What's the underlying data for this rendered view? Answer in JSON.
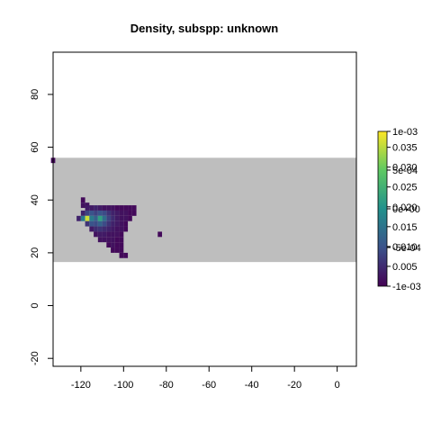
{
  "chart_data": {
    "type": "heatmap",
    "title": "Density, subspp: unknown",
    "xlabel": "",
    "ylabel": "",
    "xlim": [
      -133,
      9
    ],
    "ylim": [
      -23,
      96
    ],
    "x_ticks": [
      -120,
      -100,
      -80,
      -60,
      -40,
      -20,
      0
    ],
    "y_ticks": [
      -20,
      0,
      20,
      40,
      60,
      80
    ],
    "grid": false,
    "background_band": {
      "y_from": 16.5,
      "y_to": 56,
      "color": "#bebebe"
    },
    "colormap": [
      "#440154",
      "#3b528b",
      "#21918c",
      "#5ec962",
      "#fde725"
    ],
    "density_range": [
      0,
      0.039
    ],
    "cells": [
      {
        "x": -119,
        "y": 40,
        "v": 0.001
      },
      {
        "x": -117,
        "y": 38,
        "v": 0.002
      },
      {
        "x": -119,
        "y": 38,
        "v": 0.002
      },
      {
        "x": -117,
        "y": 37,
        "v": 0.003
      },
      {
        "x": -115,
        "y": 37,
        "v": 0.003
      },
      {
        "x": -113,
        "y": 37,
        "v": 0.004
      },
      {
        "x": -111,
        "y": 37,
        "v": 0.003
      },
      {
        "x": -109,
        "y": 37,
        "v": 0.002
      },
      {
        "x": -107,
        "y": 37,
        "v": 0.002
      },
      {
        "x": -105,
        "y": 37,
        "v": 0.002
      },
      {
        "x": -103,
        "y": 37,
        "v": 0.001
      },
      {
        "x": -101,
        "y": 37,
        "v": 0.001
      },
      {
        "x": -99,
        "y": 37,
        "v": 0.001
      },
      {
        "x": -97,
        "y": 37,
        "v": 0.001
      },
      {
        "x": -95,
        "y": 37,
        "v": 0.001
      },
      {
        "x": -119,
        "y": 35,
        "v": 0.004
      },
      {
        "x": -117,
        "y": 35,
        "v": 0.008
      },
      {
        "x": -115,
        "y": 35,
        "v": 0.01
      },
      {
        "x": -113,
        "y": 35,
        "v": 0.008
      },
      {
        "x": -111,
        "y": 35,
        "v": 0.01
      },
      {
        "x": -109,
        "y": 35,
        "v": 0.009
      },
      {
        "x": -107,
        "y": 35,
        "v": 0.006
      },
      {
        "x": -105,
        "y": 35,
        "v": 0.004
      },
      {
        "x": -103,
        "y": 35,
        "v": 0.003
      },
      {
        "x": -101,
        "y": 35,
        "v": 0.002
      },
      {
        "x": -99,
        "y": 35,
        "v": 0.002
      },
      {
        "x": -97,
        "y": 35,
        "v": 0.001
      },
      {
        "x": -95,
        "y": 35,
        "v": 0.001
      },
      {
        "x": -121,
        "y": 33,
        "v": 0.004
      },
      {
        "x": -119,
        "y": 33,
        "v": 0.016
      },
      {
        "x": -117,
        "y": 33,
        "v": 0.036
      },
      {
        "x": -115,
        "y": 33,
        "v": 0.016
      },
      {
        "x": -113,
        "y": 33,
        "v": 0.012
      },
      {
        "x": -111,
        "y": 33,
        "v": 0.022
      },
      {
        "x": -109,
        "y": 33,
        "v": 0.014
      },
      {
        "x": -107,
        "y": 33,
        "v": 0.008
      },
      {
        "x": -105,
        "y": 33,
        "v": 0.005
      },
      {
        "x": -103,
        "y": 33,
        "v": 0.003
      },
      {
        "x": -101,
        "y": 33,
        "v": 0.002
      },
      {
        "x": -99,
        "y": 33,
        "v": 0.002
      },
      {
        "x": -97,
        "y": 33,
        "v": 0.001
      },
      {
        "x": -117,
        "y": 31,
        "v": 0.006
      },
      {
        "x": -115,
        "y": 31,
        "v": 0.01
      },
      {
        "x": -113,
        "y": 31,
        "v": 0.009
      },
      {
        "x": -111,
        "y": 31,
        "v": 0.012
      },
      {
        "x": -109,
        "y": 31,
        "v": 0.009
      },
      {
        "x": -107,
        "y": 31,
        "v": 0.006
      },
      {
        "x": -105,
        "y": 31,
        "v": 0.004
      },
      {
        "x": -103,
        "y": 31,
        "v": 0.003
      },
      {
        "x": -101,
        "y": 31,
        "v": 0.002
      },
      {
        "x": -99,
        "y": 31,
        "v": 0.001
      },
      {
        "x": -115,
        "y": 29,
        "v": 0.003
      },
      {
        "x": -113,
        "y": 29,
        "v": 0.005
      },
      {
        "x": -111,
        "y": 29,
        "v": 0.006
      },
      {
        "x": -109,
        "y": 29,
        "v": 0.005
      },
      {
        "x": -107,
        "y": 29,
        "v": 0.004
      },
      {
        "x": -105,
        "y": 29,
        "v": 0.003
      },
      {
        "x": -103,
        "y": 29,
        "v": 0.002
      },
      {
        "x": -101,
        "y": 29,
        "v": 0.002
      },
      {
        "x": -99,
        "y": 29,
        "v": 0.001
      },
      {
        "x": -113,
        "y": 27,
        "v": 0.002
      },
      {
        "x": -111,
        "y": 27,
        "v": 0.003
      },
      {
        "x": -109,
        "y": 27,
        "v": 0.003
      },
      {
        "x": -107,
        "y": 27,
        "v": 0.002
      },
      {
        "x": -105,
        "y": 27,
        "v": 0.002
      },
      {
        "x": -103,
        "y": 27,
        "v": 0.002
      },
      {
        "x": -101,
        "y": 27,
        "v": 0.001
      },
      {
        "x": -83,
        "y": 27,
        "v": 0.001
      },
      {
        "x": -111,
        "y": 25,
        "v": 0.002
      },
      {
        "x": -109,
        "y": 25,
        "v": 0.002
      },
      {
        "x": -107,
        "y": 25,
        "v": 0.002
      },
      {
        "x": -105,
        "y": 25,
        "v": 0.002
      },
      {
        "x": -103,
        "y": 25,
        "v": 0.001
      },
      {
        "x": -101,
        "y": 25,
        "v": 0.001
      },
      {
        "x": -107,
        "y": 23,
        "v": 0.001
      },
      {
        "x": -105,
        "y": 23,
        "v": 0.002
      },
      {
        "x": -103,
        "y": 23,
        "v": 0.001
      },
      {
        "x": -101,
        "y": 23,
        "v": 0.001
      },
      {
        "x": -105,
        "y": 21,
        "v": 0.001
      },
      {
        "x": -103,
        "y": 21,
        "v": 0.001
      },
      {
        "x": -101,
        "y": 21,
        "v": 0.001
      },
      {
        "x": -101,
        "y": 19,
        "v": 0.001
      },
      {
        "x": -99,
        "y": 19,
        "v": 0.001
      },
      {
        "x": -133,
        "y": 55,
        "v": 0.001
      }
    ],
    "legend": {
      "position": "right",
      "scale_a": {
        "labels": [
          "0.005",
          "0.010",
          "0.015",
          "0.020",
          "0.025",
          "0.030",
          "0.035"
        ],
        "values": [
          0.005,
          0.01,
          0.015,
          0.02,
          0.025,
          0.03,
          0.035
        ],
        "min": 0,
        "max": 0.039
      },
      "scale_b": {
        "labels": [
          "-1e-03",
          "-5e-04",
          "0e+00",
          "5e-04",
          "1e-03"
        ],
        "values": [
          -0.001,
          -0.0005,
          0,
          0.0005,
          0.001
        ],
        "min": -0.001,
        "max": 0.001
      }
    }
  }
}
